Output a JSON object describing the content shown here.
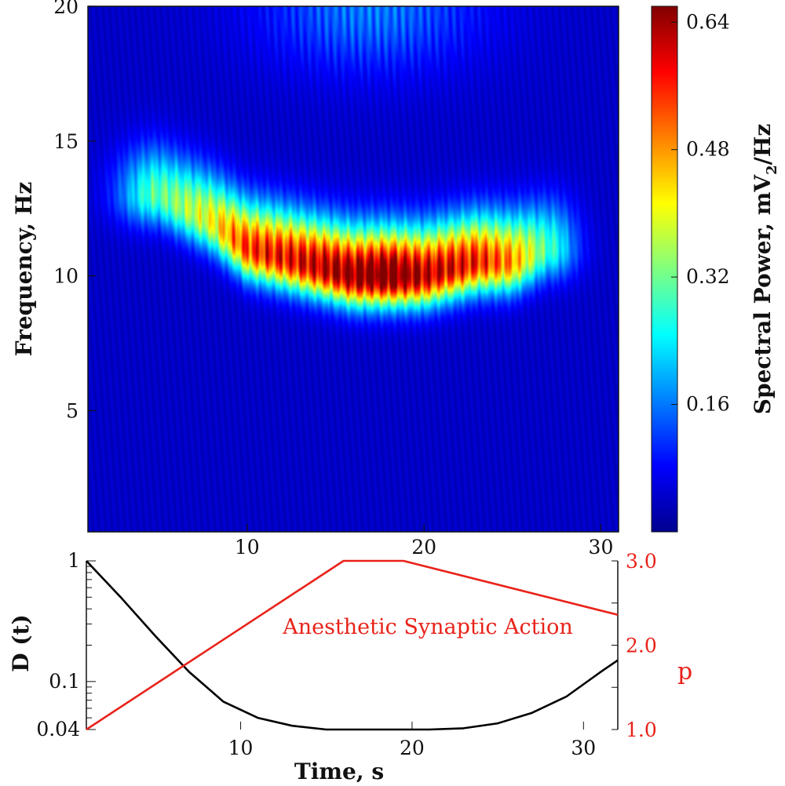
{
  "chart_data": [
    {
      "type": "heatmap",
      "title": "",
      "xlabel": "",
      "ylabel": "Frequency, Hz",
      "xlim": [
        1,
        31
      ],
      "ylim": [
        0.5,
        20
      ],
      "x_ticks": [
        10,
        20,
        30
      ],
      "y_ticks": [
        5,
        10,
        15,
        20
      ],
      "colorbar": {
        "label": "Spectral Power, mV",
        "label_subscript": "2",
        "label_suffix": "/Hz",
        "range": [
          0,
          0.66
        ],
        "ticks": [
          "0.16",
          "0.32",
          "0.48",
          "0.64"
        ],
        "colormap": "jet"
      },
      "features": [
        {
          "time": 5,
          "frequency": 13.0,
          "power": 0.26
        },
        {
          "time": 8,
          "frequency": 12.0,
          "power": 0.36
        },
        {
          "time": 10,
          "frequency": 11.0,
          "power": 0.5
        },
        {
          "time": 13,
          "frequency": 10.5,
          "power": 0.55
        },
        {
          "time": 16,
          "frequency": 10.0,
          "power": 0.62
        },
        {
          "time": 18,
          "frequency": 10.0,
          "power": 0.66
        },
        {
          "time": 20,
          "frequency": 10.0,
          "power": 0.58
        },
        {
          "time": 23,
          "frequency": 10.5,
          "power": 0.52
        },
        {
          "time": 25,
          "frequency": 10.5,
          "power": 0.44
        },
        {
          "time": 27,
          "frequency": 11.0,
          "power": 0.24
        },
        {
          "time": 17,
          "frequency": 20,
          "power": 0.15
        }
      ]
    },
    {
      "type": "line",
      "xlabel": "Time, s",
      "xlim": [
        1,
        32
      ],
      "x_ticks": [
        10,
        20,
        30
      ],
      "left_axis": {
        "label": "D (t)",
        "scale": "log",
        "lim": [
          0.04,
          1
        ],
        "tick_labels": [
          "0.04",
          "0.1",
          "1"
        ]
      },
      "right_axis": {
        "label": "p",
        "lim": [
          1.0,
          3.0
        ],
        "tick_labels": [
          "1.0",
          "2.0",
          "3.0"
        ],
        "color": "#e8231a"
      },
      "annotation": "Anesthetic Synaptic Action",
      "series": [
        {
          "axis": "left",
          "color": "#000000",
          "x": [
            1,
            3,
            5,
            7,
            9,
            11,
            13,
            15,
            17,
            19,
            21,
            23,
            25,
            27,
            29,
            31,
            32
          ],
          "values": [
            1.0,
            0.5,
            0.24,
            0.12,
            0.068,
            0.05,
            0.043,
            0.04,
            0.04,
            0.04,
            0.04,
            0.041,
            0.045,
            0.055,
            0.075,
            0.12,
            0.15
          ]
        },
        {
          "axis": "right",
          "color": "#e8231a",
          "x": [
            1,
            16,
            19.5,
            32
          ],
          "values": [
            1.0,
            3.0,
            3.0,
            2.36
          ]
        }
      ]
    }
  ]
}
